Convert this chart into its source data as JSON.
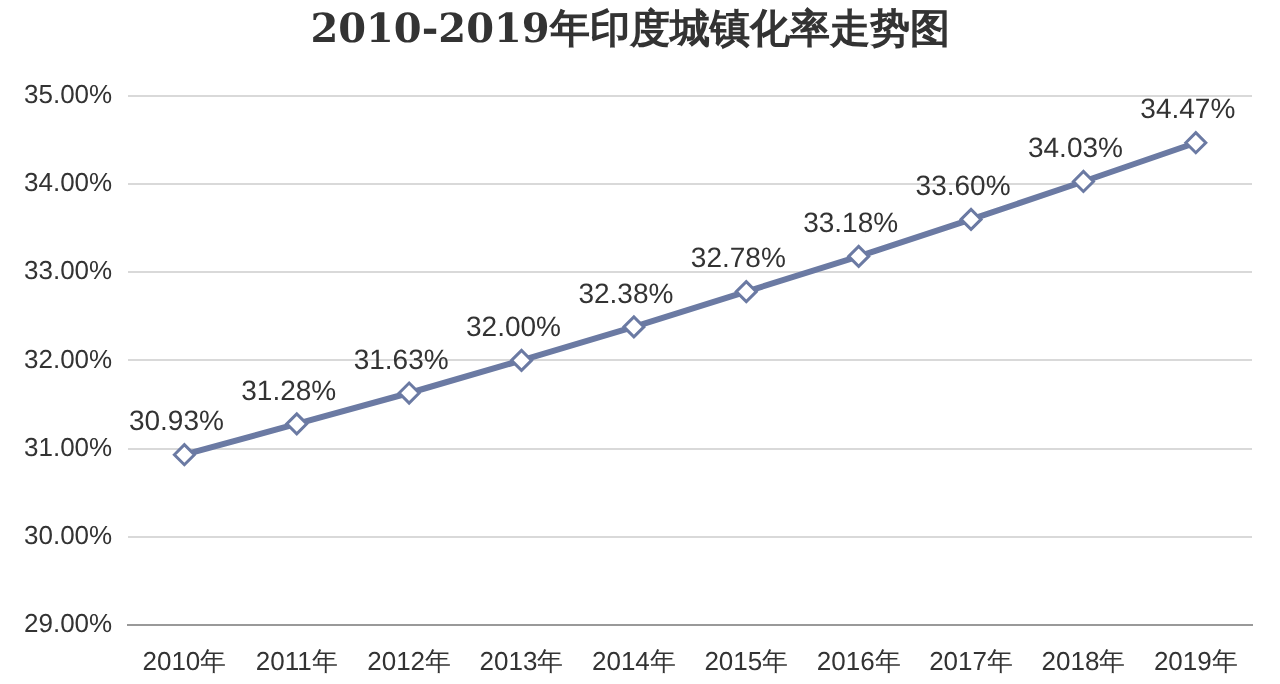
{
  "chart_data": {
    "type": "line",
    "title": "2010-2019年印度城镇化率走势图",
    "categories": [
      "2010年",
      "2011年",
      "2012年",
      "2013年",
      "2014年",
      "2015年",
      "2016年",
      "2017年",
      "2018年",
      "2019年"
    ],
    "series": [
      {
        "color": "#6b7aa3",
        "values": [
          30.93,
          31.28,
          31.63,
          32.0,
          32.38,
          32.78,
          33.18,
          33.6,
          34.03,
          34.47
        ],
        "value_labels": [
          "30.93%",
          "31.28%",
          "31.63%",
          "32.00%",
          "32.38%",
          "32.78%",
          "33.18%",
          "33.60%",
          "34.03%",
          "34.47%"
        ]
      }
    ],
    "ylim": [
      29,
      35
    ],
    "yticks": [
      {
        "value": 29,
        "label": "29.00%"
      },
      {
        "value": 30,
        "label": "30.00%"
      },
      {
        "value": 31,
        "label": "31.00%"
      },
      {
        "value": 32,
        "label": "32.00%"
      },
      {
        "value": 33,
        "label": "33.00%"
      },
      {
        "value": 34,
        "label": "34.00%"
      },
      {
        "value": 35,
        "label": "35.00%"
      }
    ],
    "grid": "y",
    "legend": false,
    "marker": "diamond",
    "line_style": "solid"
  }
}
